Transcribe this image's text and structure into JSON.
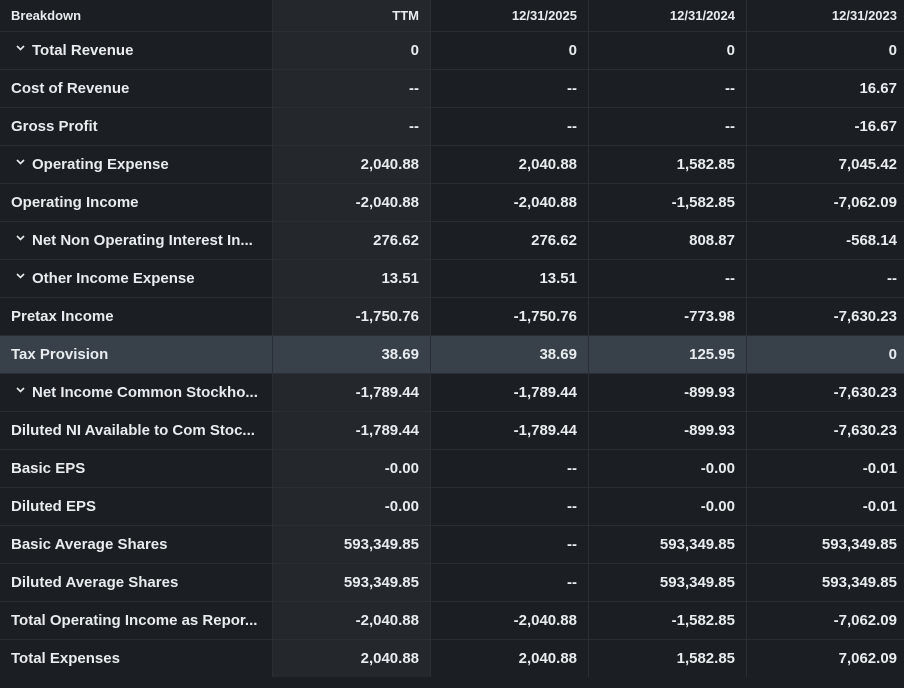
{
  "header": {
    "label": "Breakdown",
    "columns": [
      "TTM",
      "12/31/2025",
      "12/31/2024",
      "12/31/2023"
    ]
  },
  "rows": [
    {
      "label": "Total Revenue",
      "expandable": true,
      "values": [
        "0",
        "0",
        "0",
        "0"
      ]
    },
    {
      "label": "Cost of Revenue",
      "expandable": false,
      "values": [
        "--",
        "--",
        "--",
        "16.67"
      ]
    },
    {
      "label": "Gross Profit",
      "expandable": false,
      "values": [
        "--",
        "--",
        "--",
        "-16.67"
      ]
    },
    {
      "label": "Operating Expense",
      "expandable": true,
      "values": [
        "2,040.88",
        "2,040.88",
        "1,582.85",
        "7,045.42"
      ]
    },
    {
      "label": "Operating Income",
      "expandable": false,
      "values": [
        "-2,040.88",
        "-2,040.88",
        "-1,582.85",
        "-7,062.09"
      ]
    },
    {
      "label": "Net Non Operating Interest In...",
      "expandable": true,
      "values": [
        "276.62",
        "276.62",
        "808.87",
        "-568.14"
      ]
    },
    {
      "label": "Other Income Expense",
      "expandable": true,
      "values": [
        "13.51",
        "13.51",
        "--",
        "--"
      ]
    },
    {
      "label": "Pretax Income",
      "expandable": false,
      "values": [
        "-1,750.76",
        "-1,750.76",
        "-773.98",
        "-7,630.23"
      ]
    },
    {
      "label": "Tax Provision",
      "expandable": false,
      "highlighted": true,
      "values": [
        "38.69",
        "38.69",
        "125.95",
        "0"
      ]
    },
    {
      "label": "Net Income Common Stockho...",
      "expandable": true,
      "values": [
        "-1,789.44",
        "-1,789.44",
        "-899.93",
        "-7,630.23"
      ]
    },
    {
      "label": "Diluted NI Available to Com Stoc...",
      "expandable": false,
      "values": [
        "-1,789.44",
        "-1,789.44",
        "-899.93",
        "-7,630.23"
      ]
    },
    {
      "label": "Basic EPS",
      "expandable": false,
      "values": [
        "-0.00",
        "--",
        "-0.00",
        "-0.01"
      ]
    },
    {
      "label": "Diluted EPS",
      "expandable": false,
      "values": [
        "-0.00",
        "--",
        "-0.00",
        "-0.01"
      ]
    },
    {
      "label": "Basic Average Shares",
      "expandable": false,
      "values": [
        "593,349.85",
        "--",
        "593,349.85",
        "593,349.85"
      ]
    },
    {
      "label": "Diluted Average Shares",
      "expandable": false,
      "values": [
        "593,349.85",
        "--",
        "593,349.85",
        "593,349.85"
      ]
    },
    {
      "label": "Total Operating Income as Repor...",
      "expandable": false,
      "values": [
        "-2,040.88",
        "-2,040.88",
        "-1,582.85",
        "-7,062.09"
      ]
    },
    {
      "label": "Total Expenses",
      "expandable": false,
      "values": [
        "2,040.88",
        "2,040.88",
        "1,582.85",
        "7,062.09"
      ]
    }
  ],
  "icons": {
    "expand": "chevron-down-icon"
  },
  "colors": {
    "background": "#1b1e22",
    "highlight_row": "#38414a",
    "ttm_column": "#24282d",
    "text": "#e9ecef"
  }
}
